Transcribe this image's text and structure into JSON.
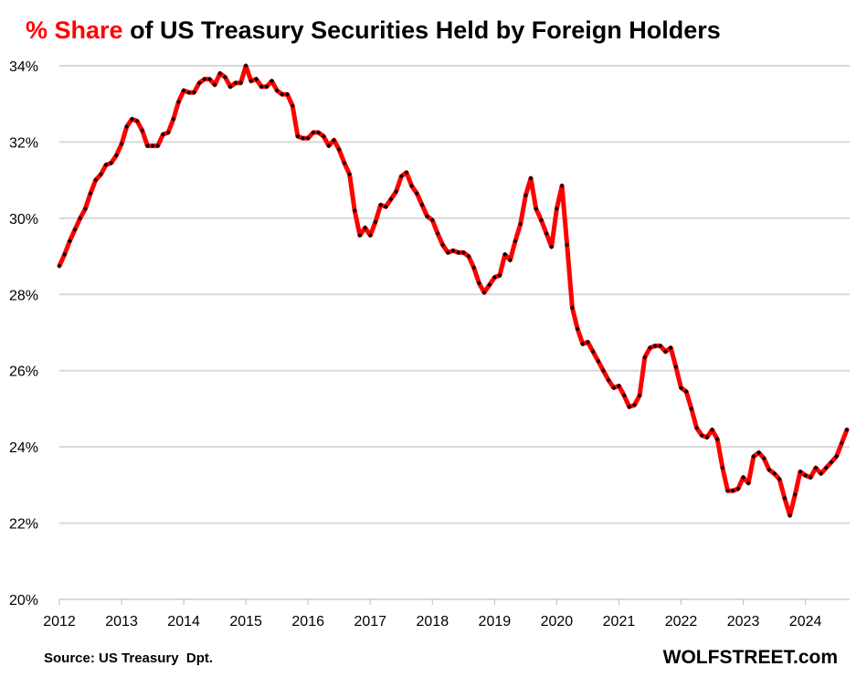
{
  "chart_data": {
    "type": "line",
    "title_highlight": "% Share",
    "title_rest": " of US Treasury Securities Held by Foreign Holders",
    "xlabel": "",
    "ylabel": "",
    "ylim": [
      20,
      34
    ],
    "yticks": [
      "20%",
      "22%",
      "24%",
      "26%",
      "28%",
      "30%",
      "32%",
      "34%"
    ],
    "ytick_values": [
      20,
      22,
      24,
      26,
      28,
      30,
      32,
      34
    ],
    "xticks": [
      "2012",
      "2013",
      "2014",
      "2015",
      "2016",
      "2017",
      "2018",
      "2019",
      "2020",
      "2021",
      "2022",
      "2023",
      "2024"
    ],
    "start": "2012-01",
    "frequency": "monthly",
    "grid": true,
    "series": [
      {
        "name": "% Share held by foreign holders",
        "color": "#ff0000",
        "marker_color": "#000000",
        "values": [
          28.75,
          29.05,
          29.4,
          29.7,
          30.0,
          30.25,
          30.65,
          31.0,
          31.15,
          31.4,
          31.45,
          31.65,
          31.95,
          32.4,
          32.6,
          32.55,
          32.3,
          31.9,
          31.9,
          31.9,
          32.2,
          32.25,
          32.6,
          33.05,
          33.35,
          33.3,
          33.3,
          33.55,
          33.65,
          33.65,
          33.5,
          33.8,
          33.7,
          33.45,
          33.55,
          33.55,
          34.0,
          33.6,
          33.65,
          33.45,
          33.45,
          33.6,
          33.35,
          33.25,
          33.25,
          32.95,
          32.15,
          32.1,
          32.1,
          32.25,
          32.25,
          32.15,
          31.9,
          32.05,
          31.8,
          31.45,
          31.15,
          30.2,
          29.55,
          29.75,
          29.55,
          29.9,
          30.35,
          30.3,
          30.5,
          30.7,
          31.1,
          31.2,
          30.85,
          30.65,
          30.35,
          30.05,
          29.95,
          29.6,
          29.3,
          29.1,
          29.15,
          29.1,
          29.1,
          29.0,
          28.7,
          28.3,
          28.05,
          28.25,
          28.45,
          28.5,
          29.05,
          28.9,
          29.4,
          29.85,
          30.6,
          31.05,
          30.25,
          29.95,
          29.6,
          29.25,
          30.25,
          30.85,
          29.3,
          27.65,
          27.1,
          26.7,
          26.75,
          26.5,
          26.25,
          26.0,
          25.75,
          25.55,
          25.6,
          25.35,
          25.05,
          25.1,
          25.35,
          26.35,
          26.6,
          26.65,
          26.65,
          26.5,
          26.6,
          26.1,
          25.55,
          25.45,
          25.0,
          24.5,
          24.3,
          24.25,
          24.45,
          24.2,
          23.45,
          22.85,
          22.85,
          22.9,
          23.2,
          23.05,
          23.75,
          23.85,
          23.7,
          23.4,
          23.3,
          23.15,
          22.65,
          22.2,
          22.75,
          23.35,
          23.25,
          23.2,
          23.45,
          23.3,
          23.45,
          23.6,
          23.75,
          24.1,
          24.45
        ]
      }
    ]
  },
  "footer": {
    "source": "Source: US Treasury  Dpt.",
    "brand": "WOLFSTREET.com"
  }
}
